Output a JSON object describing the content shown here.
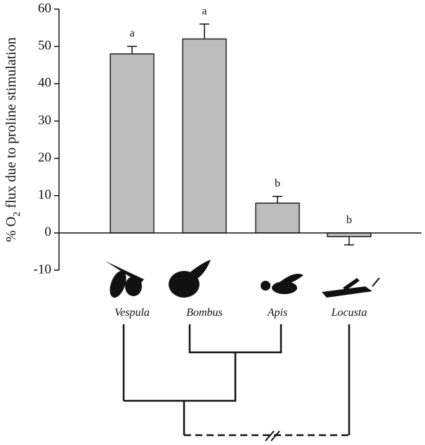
{
  "chart_data": {
    "type": "bar",
    "ylabel_parts": [
      "% O",
      "2",
      " flux due to proline stimulation"
    ],
    "categories": [
      "Vespula",
      "Bombus",
      "Apis",
      "Locusta"
    ],
    "values": [
      48,
      52,
      8,
      -1
    ],
    "errors": [
      2,
      4,
      1.8,
      2.2
    ],
    "annotations": [
      "a",
      "a",
      "b",
      "b"
    ],
    "color": "#bdbdbd",
    "ylim": [
      -10,
      60
    ],
    "yticks": [
      -10,
      0,
      10,
      20,
      30,
      40,
      50,
      60
    ],
    "grid": false
  }
}
